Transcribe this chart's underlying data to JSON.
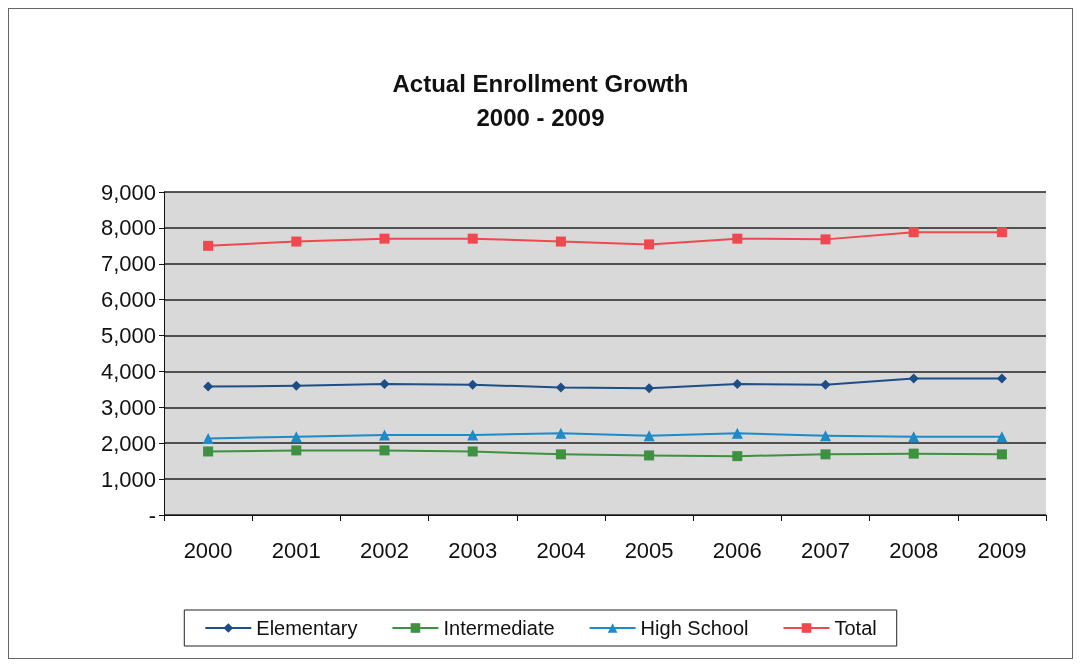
{
  "chart_data": {
    "type": "line",
    "title": "Actual Enrollment Growth\n2000 - 2009",
    "categories": [
      "2000",
      "2001",
      "2002",
      "2003",
      "2004",
      "2005",
      "2006",
      "2007",
      "2008",
      "2009"
    ],
    "series": [
      {
        "name": "Elementary",
        "color": "#1f4e86",
        "marker": "diamond",
        "values": [
          3580,
          3600,
          3650,
          3630,
          3550,
          3530,
          3650,
          3630,
          3800,
          3800
        ]
      },
      {
        "name": "Intermediate",
        "color": "#3d9140",
        "marker": "square",
        "values": [
          1770,
          1800,
          1800,
          1770,
          1690,
          1660,
          1640,
          1690,
          1710,
          1690
        ]
      },
      {
        "name": "High School",
        "color": "#1e8ac8",
        "marker": "triangle",
        "values": [
          2130,
          2180,
          2230,
          2230,
          2280,
          2210,
          2280,
          2210,
          2180,
          2180
        ]
      },
      {
        "name": "Total",
        "color": "#f0484f",
        "marker": "square",
        "values": [
          7500,
          7620,
          7700,
          7700,
          7620,
          7540,
          7700,
          7680,
          7880,
          7880
        ]
      }
    ],
    "ylim": [
      0,
      9000
    ],
    "yticks": [
      {
        "value": 0,
        "label": "-"
      },
      {
        "value": 1000,
        "label": "1,000"
      },
      {
        "value": 2000,
        "label": "2,000"
      },
      {
        "value": 3000,
        "label": "3,000"
      },
      {
        "value": 4000,
        "label": "4,000"
      },
      {
        "value": 5000,
        "label": "5,000"
      },
      {
        "value": 6000,
        "label": "6,000"
      },
      {
        "value": 7000,
        "label": "7,000"
      },
      {
        "value": 8000,
        "label": "8,000"
      },
      {
        "value": 9000,
        "label": "9,000"
      }
    ],
    "grid": "y",
    "legend": "bottom"
  }
}
